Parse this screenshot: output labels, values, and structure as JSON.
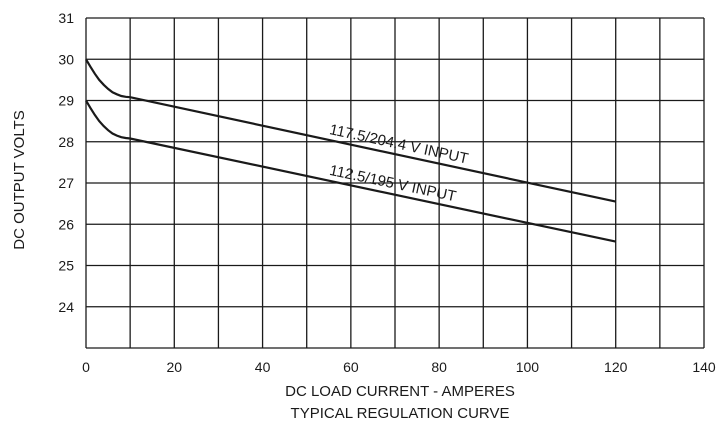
{
  "chart_data": {
    "type": "line",
    "title": "",
    "caption": "TYPICAL REGULATION CURVE",
    "xlabel": "DC LOAD CURRENT - AMPERES",
    "ylabel": "DC OUTPUT VOLTS",
    "xlim": [
      0,
      140
    ],
    "ylim": [
      23,
      31
    ],
    "x_ticks": [
      0,
      20,
      40,
      60,
      80,
      100,
      120,
      140
    ],
    "y_ticks": [
      24,
      25,
      26,
      27,
      28,
      29,
      30,
      31
    ],
    "grid": true,
    "legend": "none",
    "line_color": "#1a1a1a",
    "series": [
      {
        "name": "117.5/204.4 V INPUT",
        "points": [
          [
            0,
            30.0
          ],
          [
            1,
            29.82
          ],
          [
            2,
            29.65
          ],
          [
            3,
            29.5
          ],
          [
            4,
            29.38
          ],
          [
            5,
            29.28
          ],
          [
            6,
            29.2
          ],
          [
            7,
            29.15
          ],
          [
            8,
            29.11
          ],
          [
            9,
            29.09
          ],
          [
            10,
            29.08
          ],
          [
            120,
            26.55
          ]
        ]
      },
      {
        "name": "112.5/195 V INPUT",
        "points": [
          [
            0,
            29.0
          ],
          [
            1,
            28.82
          ],
          [
            2,
            28.65
          ],
          [
            3,
            28.5
          ],
          [
            4,
            28.38
          ],
          [
            5,
            28.28
          ],
          [
            6,
            28.2
          ],
          [
            7,
            28.15
          ],
          [
            8,
            28.11
          ],
          [
            9,
            28.09
          ],
          [
            10,
            28.08
          ],
          [
            120,
            25.58
          ]
        ]
      }
    ]
  }
}
